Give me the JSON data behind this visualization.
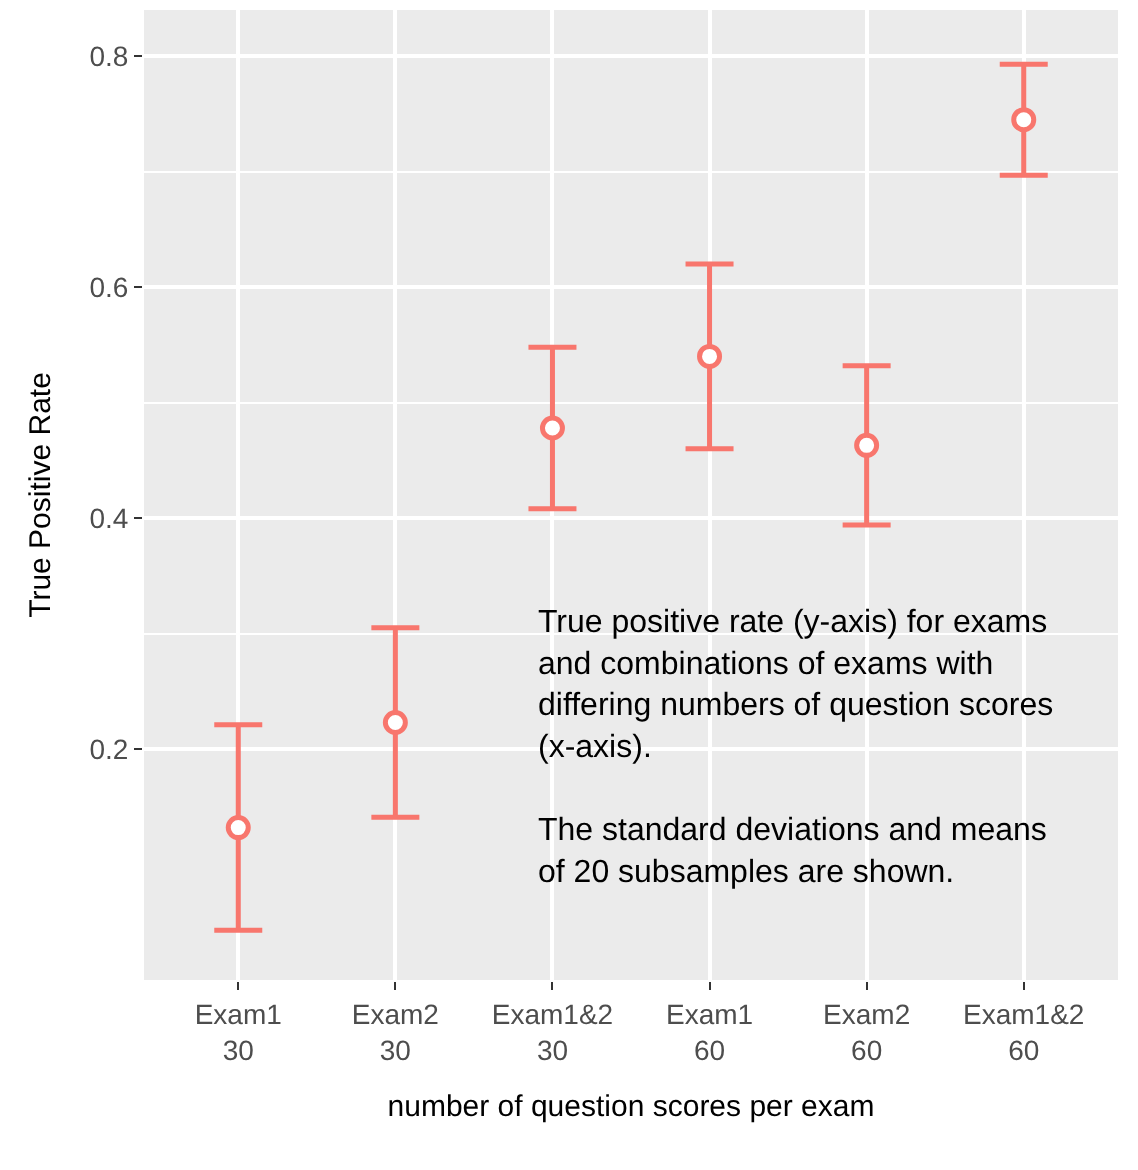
{
  "chart_data": {
    "type": "scatter",
    "xlabel": "number of question scores per exam",
    "ylabel": "True Positive Rate",
    "categories": [
      "Exam1\n30",
      "Exam2\n30",
      "Exam1&2\n30",
      "Exam1\n60",
      "Exam2\n60",
      "Exam1&2\n60"
    ],
    "series": [
      {
        "color": "#f8766d",
        "values": [
          0.132,
          0.223,
          0.478,
          0.54,
          0.463,
          0.745
        ],
        "errors": [
          0.089,
          0.082,
          0.07,
          0.08,
          0.069,
          0.048
        ]
      }
    ],
    "ylim": [
      0.0,
      0.84
    ],
    "yticks": [
      0.2,
      0.4,
      0.6,
      0.8
    ],
    "grid": true,
    "marker": "circle",
    "annotations": [
      "True positive rate (y-axis) for exams\nand combinations of exams with\ndiffering numbers of question scores\n(x-axis).\n\nThe standard deviations and means\nof 20 subsamples are shown."
    ]
  }
}
